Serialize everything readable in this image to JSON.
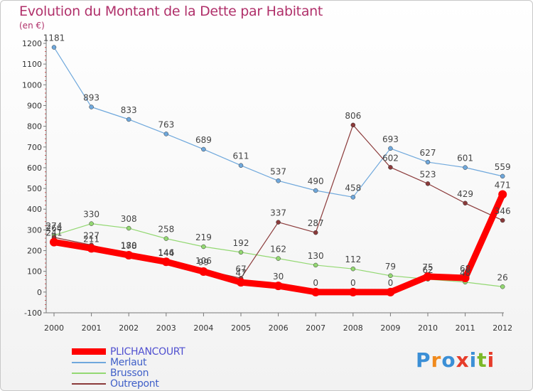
{
  "page": {
    "title": "Evolution du Montant de la Dette par Habitant",
    "unit_label": "(en €)",
    "logo": {
      "text": "Proxiti",
      "colors": [
        "#3b8fd6",
        "#f08a1d",
        "#3b8fd6",
        "#e63c2a",
        "#3b8fd6",
        "#7cb828",
        "#e63c2a"
      ]
    }
  },
  "chart_data": {
    "type": "line",
    "title": "Evolution du Montant de la Dette par Habitant",
    "ylabel": "(en €)",
    "xlabel": "",
    "x": [
      "2000",
      "2001",
      "2002",
      "2003",
      "2004",
      "2005",
      "2006",
      "2007",
      "2008",
      "2009",
      "2010",
      "2011",
      "2012"
    ],
    "ylim": [
      -100,
      1200
    ],
    "yticks": [
      -100,
      0,
      100,
      200,
      300,
      400,
      500,
      600,
      700,
      800,
      900,
      1000,
      1100,
      1200
    ],
    "grid": false,
    "legend_position": "bottom-left",
    "series": [
      {
        "name": "PLICHANCOURT",
        "color": "#ff0000",
        "values": [
          241,
          211,
          178,
          146,
          99,
          47,
          30,
          0,
          0,
          0,
          75,
          68,
          471
        ]
      },
      {
        "name": "Merlaut",
        "color": "#6fa8dc",
        "values": [
          1181,
          893,
          833,
          763,
          689,
          611,
          537,
          490,
          458,
          693,
          627,
          601,
          559
        ]
      },
      {
        "name": "Brusson",
        "color": "#93d872",
        "values": [
          274,
          330,
          308,
          258,
          219,
          192,
          162,
          130,
          112,
          79,
          62,
          48,
          26
        ]
      },
      {
        "name": "Outrepont",
        "color": "#8b3a3a",
        "values": [
          264,
          227,
          180,
          144,
          106,
          67,
          337,
          287,
          806,
          602,
          523,
          429,
          346
        ]
      }
    ]
  }
}
